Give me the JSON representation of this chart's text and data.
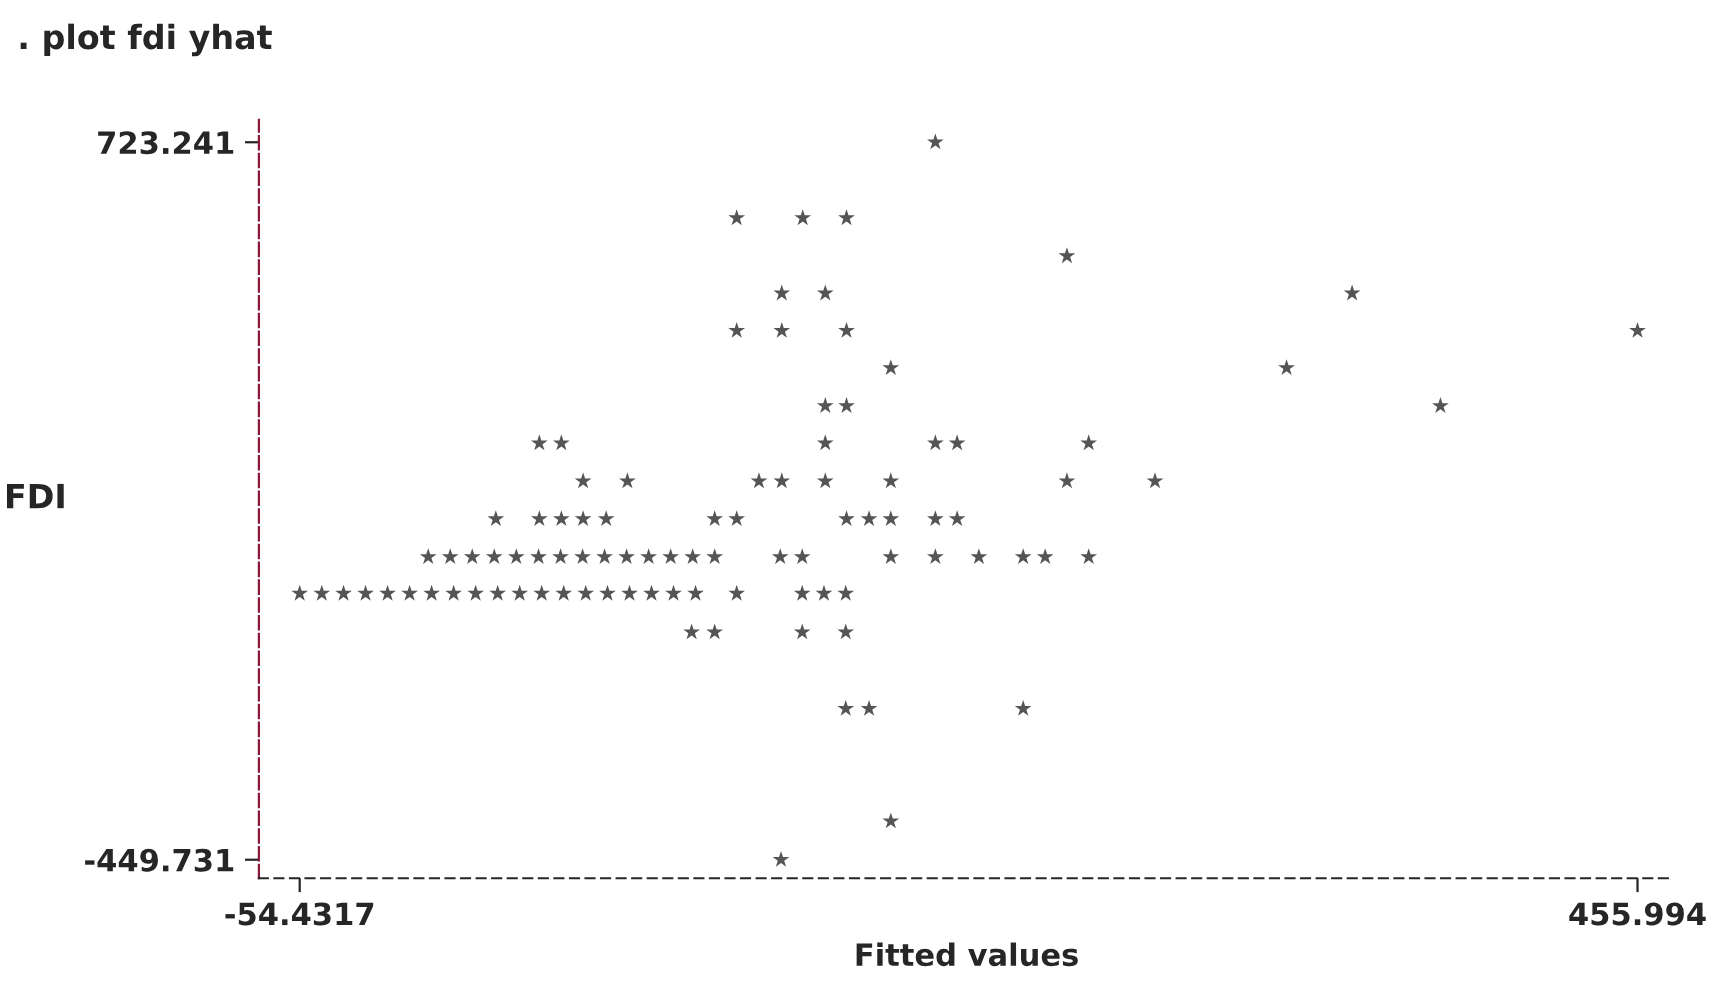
{
  "chart_data": {
    "type": "scatter",
    "title": ". plot fdi yhat",
    "xlabel": "Fitted values",
    "ylabel": "FDI",
    "marker": "star",
    "grid": false,
    "xlim": [
      -70,
      470
    ],
    "ylim": [
      -480,
      760
    ],
    "xticks": [
      -54.4317,
      455.994
    ],
    "yticks": [
      -449.731,
      723.241
    ],
    "series": [
      {
        "color": "#555555",
        "x": [
          188.1,
          112.3,
          137.5,
          154.2,
          238.3,
          129.5,
          146.1,
          347.1,
          112.3,
          129.5,
          154.2,
          455.994,
          171.1,
          322.1,
          146.1,
          154.2,
          380.8,
          37.0,
          45.4,
          146.1,
          188.1,
          196.4,
          246.6,
          53.7,
          70.6,
          120.8,
          129.5,
          146.1,
          171.1,
          238.3,
          271.9,
          20.4,
          37.0,
          45.4,
          53.7,
          62.5,
          103.9,
          112.3,
          154.2,
          162.8,
          171.1,
          188.1,
          196.4,
          -5.4,
          3.0,
          11.4,
          19.8,
          28.2,
          36.7,
          45.1,
          53.5,
          61.9,
          70.3,
          78.7,
          87.1,
          95.5,
          103.9,
          128.9,
          137.3,
          171.1,
          188.1,
          204.7,
          221.6,
          230.0,
          246.6,
          -54.4317,
          -46.0,
          -37.7,
          -29.3,
          -20.9,
          -12.5,
          -4.1,
          4.3,
          12.7,
          21.1,
          29.5,
          37.9,
          46.3,
          54.7,
          63.0,
          71.4,
          79.8,
          88.2,
          96.6,
          112.3,
          137.3,
          145.6,
          153.9,
          95.1,
          103.9,
          137.3,
          153.9,
          153.9,
          162.8,
          221.6,
          171.1,
          129.2
        ],
        "values": [
          723.241,
          599.3,
          599.3,
          599.3,
          537.2,
          476.3,
          476.3,
          476.3,
          415.2,
          415.2,
          415.2,
          415.2,
          354.3,
          354.3,
          292.2,
          292.2,
          292.2,
          231.4,
          231.4,
          231.4,
          231.4,
          231.4,
          231.4,
          169.2,
          169.2,
          169.2,
          169.2,
          169.2,
          169.2,
          169.2,
          169.2,
          107.4,
          107.4,
          107.4,
          107.4,
          107.4,
          107.4,
          107.4,
          107.4,
          107.4,
          107.4,
          107.4,
          107.4,
          45.3,
          45.3,
          45.3,
          45.3,
          45.3,
          45.3,
          45.3,
          45.3,
          45.3,
          45.3,
          45.3,
          45.3,
          45.3,
          45.3,
          45.3,
          45.3,
          45.3,
          45.3,
          45.3,
          45.3,
          45.3,
          45.3,
          -14.6,
          -14.6,
          -14.6,
          -14.6,
          -14.6,
          -14.6,
          -14.6,
          -14.6,
          -14.6,
          -14.6,
          -14.6,
          -14.6,
          -14.6,
          -14.6,
          -14.6,
          -14.6,
          -14.6,
          -14.6,
          -14.6,
          -14.6,
          -14.6,
          -14.6,
          -14.6,
          -77.7,
          -77.7,
          -77.7,
          -77.7,
          -202.8,
          -202.8,
          -202.8,
          -386.7,
          -449.731
        ]
      }
    ]
  }
}
